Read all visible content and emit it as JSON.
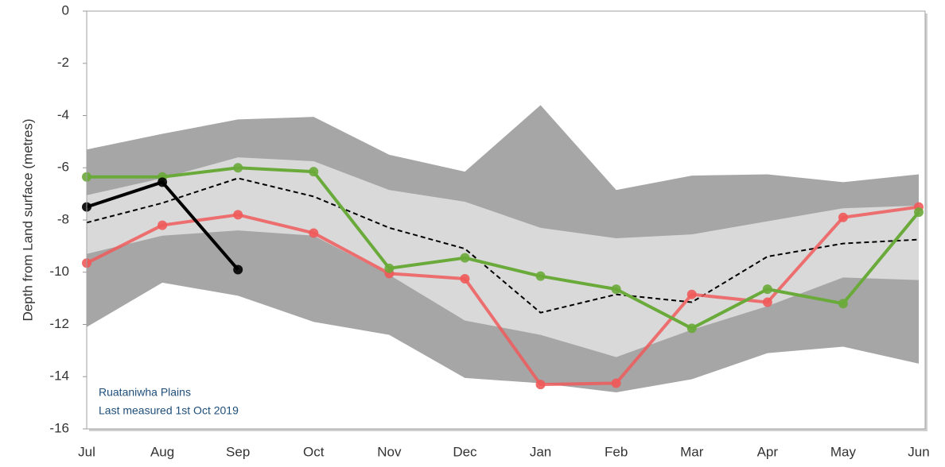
{
  "chart_data": {
    "type": "line",
    "y_label": "Depth from Land surface (metres)",
    "annotations": [
      "Ruataniwha Plains",
      "Last measured 1st Oct 2019"
    ],
    "categories": [
      "Jul",
      "Aug",
      "Sep",
      "Oct",
      "Nov",
      "Dec",
      "Jan",
      "Feb",
      "Mar",
      "Apr",
      "May",
      "Jun"
    ],
    "ylim": [
      -16,
      0
    ],
    "yticks": [
      0,
      -2,
      -4,
      -6,
      -8,
      -10,
      -12,
      -14,
      -16
    ],
    "bands": [
      {
        "color": "#a6a6a6",
        "upper": [
          -5.3,
          -4.7,
          -4.15,
          -4.05,
          -5.5,
          -6.15,
          -3.6,
          -6.85,
          -6.3,
          -6.25,
          -6.55,
          -6.25
        ],
        "lower": [
          -12.1,
          -10.4,
          -10.9,
          -11.9,
          -12.4,
          -14.05,
          -14.25,
          -14.6,
          -14.1,
          -13.1,
          -12.85,
          -13.5
        ]
      },
      {
        "color": "#d9d9d9",
        "upper": [
          -7.05,
          -6.4,
          -5.6,
          -5.75,
          -6.85,
          -7.3,
          -8.3,
          -8.7,
          -8.55,
          -8.05,
          -7.55,
          -7.45
        ],
        "lower": [
          -9.3,
          -8.6,
          -8.4,
          -8.6,
          -10.1,
          -11.85,
          -12.4,
          -13.25,
          -12.2,
          -11.3,
          -10.2,
          -10.3
        ]
      }
    ],
    "series": [
      {
        "color": "#000000",
        "dashed": true,
        "markers": false,
        "values": [
          -8.1,
          -7.35,
          -6.4,
          -7.1,
          -8.3,
          -9.1,
          -11.55,
          -10.85,
          -11.15,
          -9.4,
          -8.9,
          -8.75
        ]
      },
      {
        "color": "#f05a5a",
        "dashed": false,
        "markers": true,
        "values": [
          -9.65,
          -8.2,
          -7.8,
          -8.5,
          -10.05,
          -10.25,
          -14.3,
          -14.25,
          -10.85,
          -11.15,
          -7.9,
          -7.5
        ]
      },
      {
        "color": "#6aaa3a",
        "dashed": false,
        "markers": true,
        "values": [
          -6.35,
          -6.35,
          -6.0,
          -6.15,
          -9.85,
          -9.45,
          -10.15,
          -10.65,
          -12.15,
          -10.65,
          -11.2,
          -7.7
        ]
      },
      {
        "color": "#000000",
        "dashed": false,
        "markers": true,
        "values": [
          -7.5,
          -6.55,
          -9.9,
          null,
          null,
          null,
          null,
          null,
          null,
          null,
          null,
          null
        ]
      }
    ]
  }
}
